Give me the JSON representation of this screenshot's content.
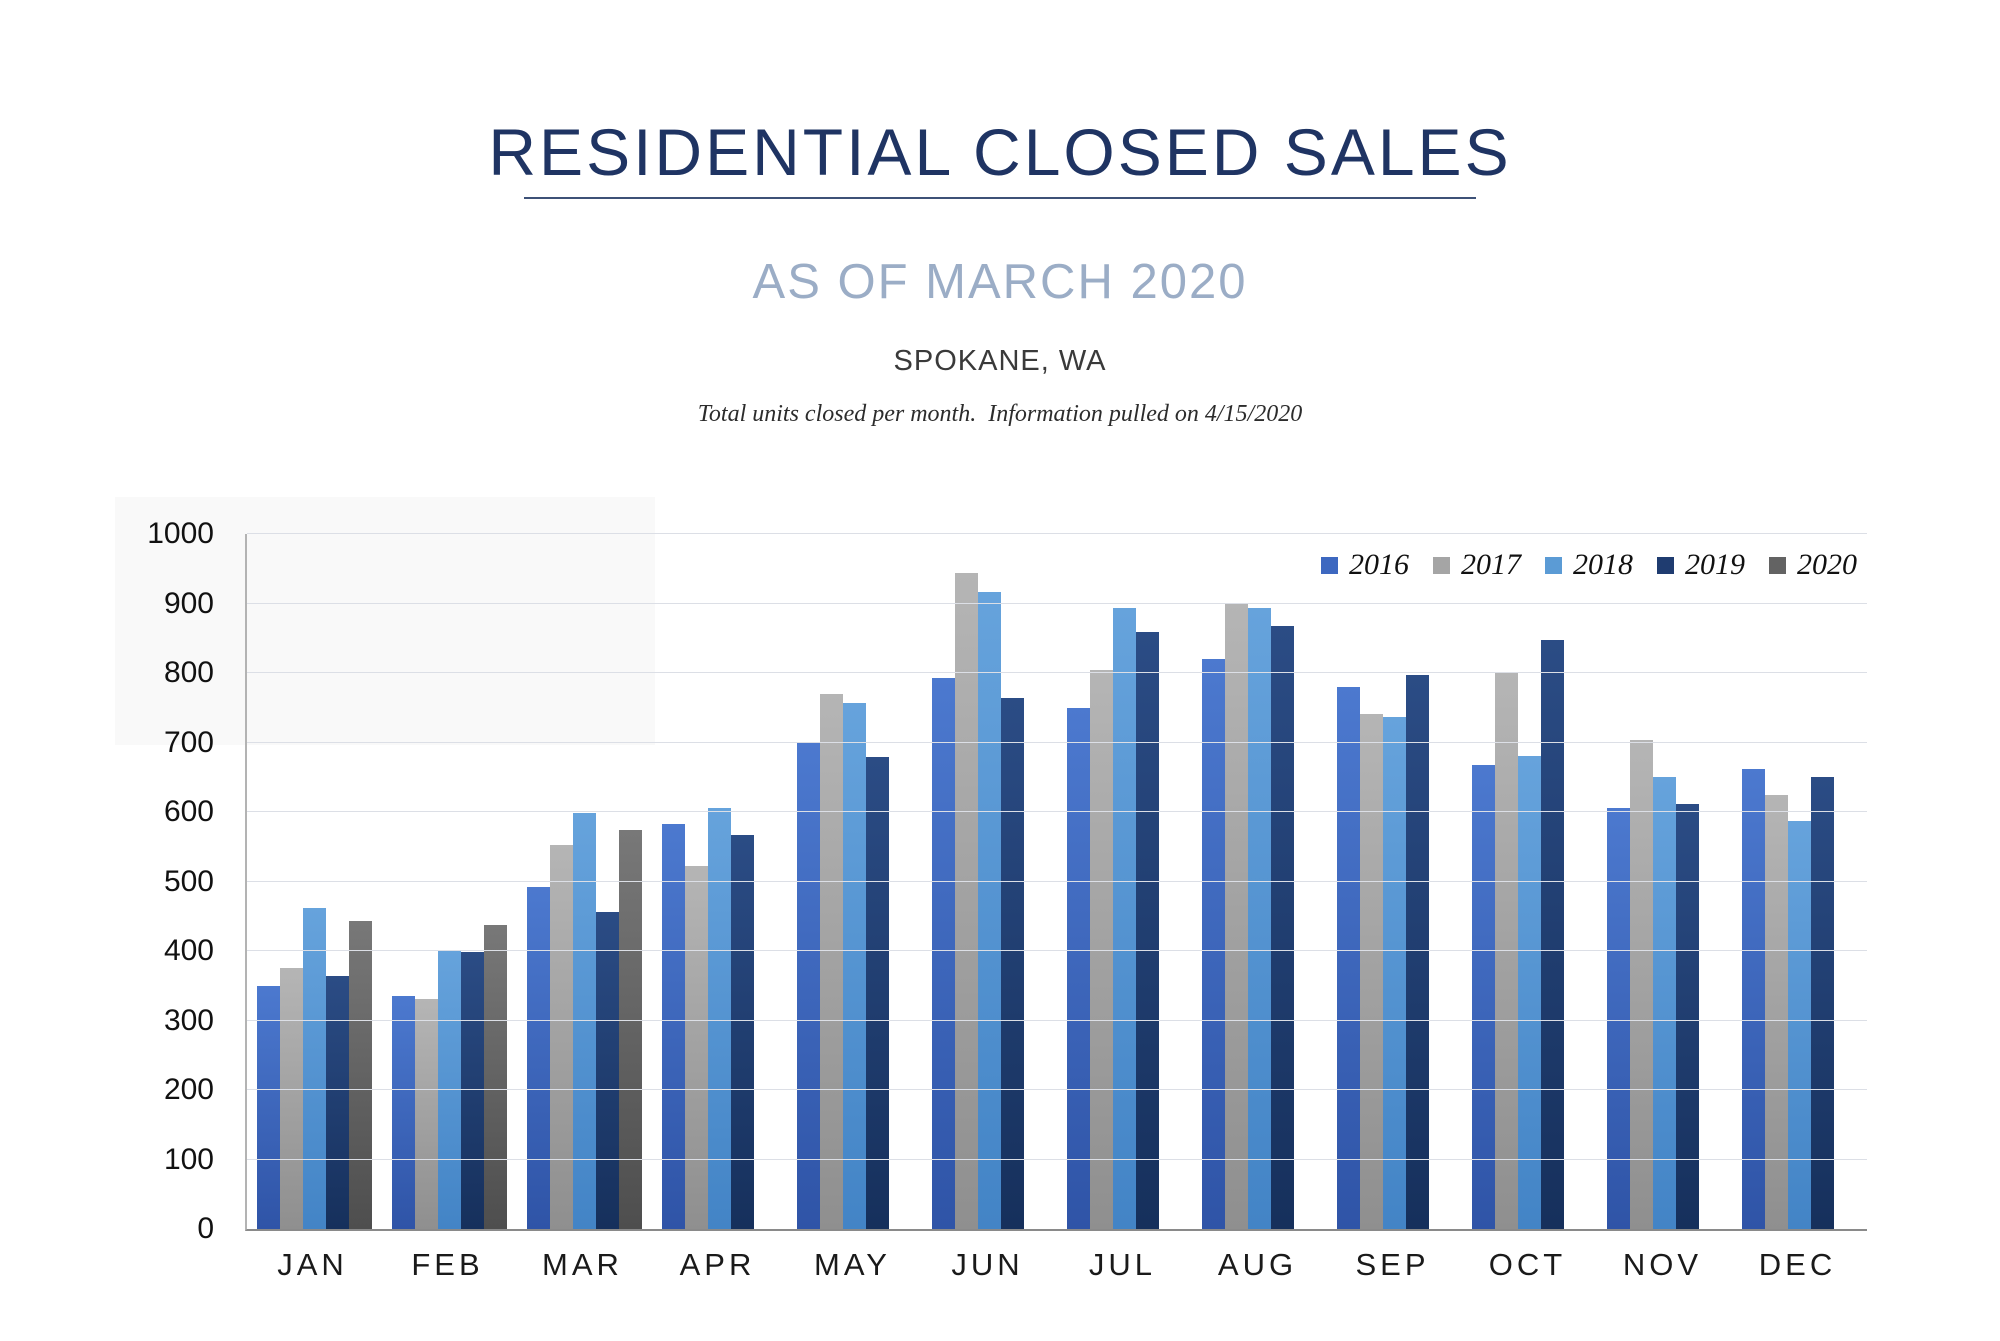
{
  "header": {
    "title": "RESIDENTIAL CLOSED SALES",
    "subtitle": "AS OF MARCH 2020",
    "location": "SPOKANE, WA",
    "note": "Total units closed per month.  Information pulled on 4/15/2020"
  },
  "chart_data": {
    "type": "bar",
    "title": "Residential closed sales per month, Spokane WA",
    "categories": [
      "JAN",
      "FEB",
      "MAR",
      "APR",
      "MAY",
      "JUN",
      "JUL",
      "AUG",
      "SEP",
      "OCT",
      "NOV",
      "DEC"
    ],
    "series": [
      {
        "name": "2016",
        "color": "#3d68c0",
        "color_top": "#4c79cf",
        "color_bottom": "#2f54a7",
        "values": [
          350,
          335,
          492,
          583,
          700,
          793,
          750,
          820,
          780,
          667,
          606,
          662
        ]
      },
      {
        "name": "2017",
        "color": "#a5a5a5",
        "color_top": "#b5b5b5",
        "color_bottom": "#8f8f8f",
        "values": [
          376,
          331,
          552,
          522,
          770,
          944,
          804,
          901,
          741,
          800,
          704,
          625
        ]
      },
      {
        "name": "2018",
        "color": "#5b9bd5",
        "color_top": "#66a3dc",
        "color_bottom": "#4384c6",
        "values": [
          462,
          401,
          599,
          606,
          757,
          916,
          894,
          894,
          737,
          680,
          650,
          587
        ]
      },
      {
        "name": "2019",
        "color": "#1f3c70",
        "color_top": "#2b4c85",
        "color_bottom": "#16305c",
        "values": [
          364,
          399,
          456,
          567,
          679,
          764,
          859,
          868,
          797,
          847,
          611,
          650
        ]
      },
      {
        "name": "2020",
        "color": "#636363",
        "color_top": "#787878",
        "color_bottom": "#4e4e4e",
        "values": [
          443,
          437,
          574,
          null,
          null,
          null,
          null,
          null,
          null,
          null,
          null,
          null
        ]
      }
    ],
    "xlabel": "",
    "ylabel": "",
    "ylim": [
      0,
      1000
    ],
    "ytick_step": 100,
    "grid": true,
    "legend_position": "top-right"
  }
}
